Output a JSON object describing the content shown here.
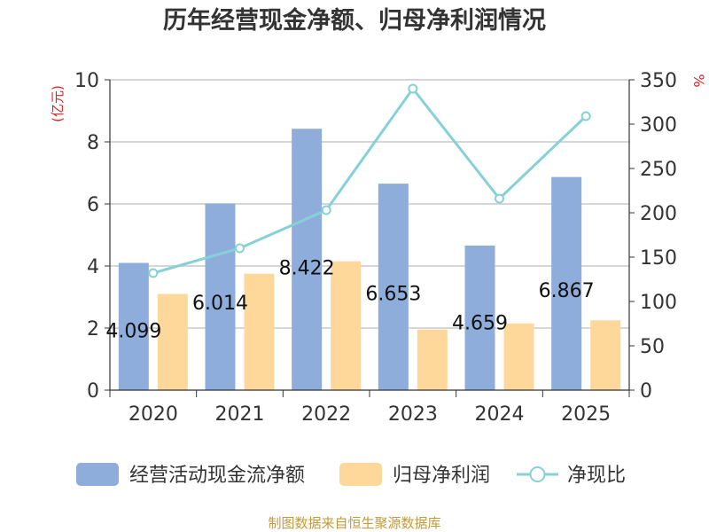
{
  "chart_data": {
    "type": "bar",
    "title": "历年经营现金净额、归母净利润情况",
    "categories": [
      "2020",
      "2021",
      "2022",
      "2023",
      "2024",
      "2025"
    ],
    "left_axis": {
      "unit": "(亿元)",
      "ylim": [
        0,
        10
      ],
      "ticks": [
        0,
        2,
        4,
        6,
        8,
        10
      ]
    },
    "right_axis": {
      "unit": "%",
      "ylim": [
        0,
        350
      ],
      "ticks": [
        0,
        50,
        100,
        150,
        200,
        250,
        300,
        350
      ]
    },
    "series": [
      {
        "name": "经营活动现金流净额",
        "kind": "bar",
        "axis": "left",
        "color": "#8eaddb",
        "values": [
          4.099,
          6.014,
          8.422,
          6.653,
          4.659,
          6.867
        ],
        "labels": [
          "4.099",
          "6.014",
          "8.422",
          "6.653",
          "4.659",
          "6.867"
        ]
      },
      {
        "name": "归母净利润",
        "kind": "bar",
        "axis": "left",
        "color": "#fed89b",
        "values": [
          3.1,
          3.75,
          4.15,
          1.95,
          2.15,
          2.25
        ]
      },
      {
        "name": "净现比",
        "kind": "line",
        "axis": "right",
        "color": "#86d1d6",
        "values": [
          132,
          160,
          203,
          340,
          216,
          309
        ]
      }
    ],
    "grid": true,
    "legend": "bottom"
  },
  "footer": {
    "source": "制图数据来自恒生聚源数据库"
  }
}
